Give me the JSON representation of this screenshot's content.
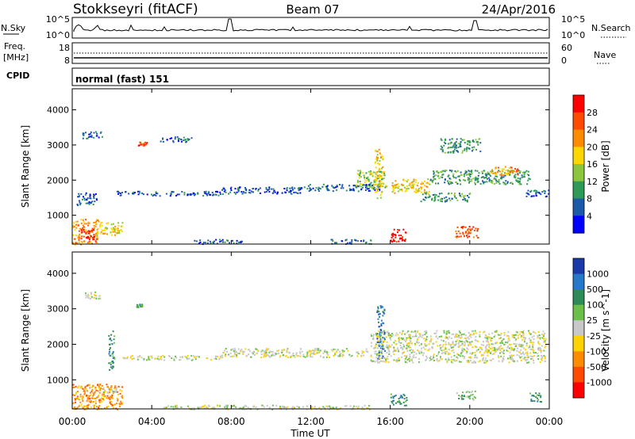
{
  "header": {
    "station": "Stokkseyri (fitACF)",
    "beam": "Beam 07",
    "date": "24/Apr/2016"
  },
  "noise_panel": {
    "left_label": "N.Sky",
    "right_label": "N.Search",
    "left_ticks": [
      "10^5",
      "10^0"
    ],
    "right_ticks": [
      "10^5",
      "10^0"
    ]
  },
  "freq_panel": {
    "left_label": "Freq.",
    "left_unit": "[MHz]",
    "left_ticks": [
      "18",
      "8"
    ],
    "right_label": "Nave",
    "right_ticks": [
      "60",
      "0"
    ]
  },
  "cpid_panel": {
    "label": "CPID",
    "mode": "normal (fast) 151"
  },
  "chart_data": [
    {
      "type": "heatmap",
      "name": "power",
      "ylabel": "Slant Range [km]",
      "yticks": [
        1000,
        2000,
        3000,
        4000
      ],
      "ylim": [
        180,
        4600
      ],
      "xticks": [
        "00:00",
        "04:00",
        "08:00",
        "12:00",
        "16:00",
        "20:00",
        "00:00"
      ],
      "xlim_hours": [
        0,
        24
      ],
      "colorbar_label": "Power [dB]",
      "colorbar_ticks": [
        "28",
        "24",
        "20",
        "16",
        "12",
        "8",
        "4"
      ],
      "colorbar_colors": [
        "#ff0000",
        "#ff4a00",
        "#ff8c00",
        "#ffd700",
        "#8cc63f",
        "#2e9a55",
        "#1b5aa8",
        "#0000ff"
      ],
      "regions": [
        {
          "t0": 0.0,
          "t1": 1.3,
          "r0": 180,
          "r1": 900,
          "level": 5
        },
        {
          "t0": 0.4,
          "t1": 1.1,
          "r0": 320,
          "r1": 620,
          "level": 7
        },
        {
          "t0": 1.2,
          "t1": 2.5,
          "r0": 450,
          "r1": 820,
          "level": 4
        },
        {
          "t0": 0.2,
          "t1": 1.2,
          "r0": 1300,
          "r1": 1650,
          "level": 1
        },
        {
          "t0": 0.5,
          "t1": 1.5,
          "r0": 3200,
          "r1": 3400,
          "level": 1
        },
        {
          "t0": 2.2,
          "t1": 7.5,
          "r0": 1570,
          "r1": 1700,
          "level": 1
        },
        {
          "t0": 3.3,
          "t1": 3.8,
          "r0": 3000,
          "r1": 3100,
          "level": 6
        },
        {
          "t0": 4.3,
          "t1": 6.0,
          "r0": 3100,
          "r1": 3250,
          "level": 1
        },
        {
          "t0": 7.5,
          "t1": 11.5,
          "r0": 1620,
          "r1": 1820,
          "level": 1
        },
        {
          "t0": 11.5,
          "t1": 15.5,
          "r0": 1700,
          "r1": 1900,
          "level": 1
        },
        {
          "t0": 14.2,
          "t1": 15.8,
          "r0": 1800,
          "r1": 2300,
          "level": 3
        },
        {
          "t0": 15.2,
          "t1": 15.6,
          "r0": 1500,
          "r1": 2900,
          "level": 4
        },
        {
          "t0": 16.0,
          "t1": 18.0,
          "r0": 1650,
          "r1": 2050,
          "level": 4
        },
        {
          "t0": 17.5,
          "t1": 20.0,
          "r0": 1400,
          "r1": 1650,
          "level": 2
        },
        {
          "t0": 18.0,
          "t1": 23.0,
          "r0": 1900,
          "r1": 2300,
          "level": 2
        },
        {
          "t0": 21.0,
          "t1": 22.5,
          "r0": 2150,
          "r1": 2400,
          "level": 5
        },
        {
          "t0": 22.8,
          "t1": 24.0,
          "r0": 1550,
          "r1": 1750,
          "level": 1
        },
        {
          "t0": 18.5,
          "t1": 20.5,
          "r0": 2800,
          "r1": 3200,
          "level": 2
        },
        {
          "t0": 16.0,
          "t1": 16.8,
          "r0": 250,
          "r1": 620,
          "level": 7
        },
        {
          "t0": 19.2,
          "t1": 20.4,
          "r0": 380,
          "r1": 700,
          "level": 6
        },
        {
          "t0": 6.0,
          "t1": 8.5,
          "r0": 200,
          "r1": 330,
          "level": 1
        },
        {
          "t0": 13.0,
          "t1": 15.0,
          "r0": 200,
          "r1": 330,
          "level": 1
        }
      ]
    },
    {
      "type": "heatmap",
      "name": "velocity",
      "ylabel": "Slant Range [km]",
      "yticks": [
        1000,
        2000,
        3000,
        4000
      ],
      "ylim": [
        180,
        4600
      ],
      "xticks": [
        "00:00",
        "04:00",
        "08:00",
        "12:00",
        "16:00",
        "20:00",
        "00:00"
      ],
      "xlim_hours": [
        0,
        24
      ],
      "xlabel": "Time UT",
      "colorbar_label": "Velocity [m s^-1]",
      "colorbar_ticks": [
        "1000",
        "500",
        "100",
        "25",
        "-25",
        "-100",
        "-500",
        "-1000"
      ],
      "colorbar_colors": [
        "#1a3aa8",
        "#2878c8",
        "#2e8b57",
        "#6cc04a",
        "#c8c8c8",
        "#ffd200",
        "#ff8c00",
        "#ff4a00",
        "#ff0000"
      ],
      "regions": [
        {
          "t0": 0.0,
          "t1": 2.5,
          "r0": 180,
          "r1": 900,
          "level": 2
        },
        {
          "t0": 1.5,
          "t1": 2.2,
          "r0": 650,
          "r1": 820,
          "level": 4
        },
        {
          "t0": 0.5,
          "t1": 1.5,
          "r0": 3300,
          "r1": 3500,
          "level": 4
        },
        {
          "t0": 2.5,
          "t1": 7.5,
          "r0": 1570,
          "r1": 1700,
          "level": 4
        },
        {
          "t0": 3.2,
          "t1": 3.5,
          "r0": 3050,
          "r1": 3150,
          "level": 6
        },
        {
          "t0": 1.8,
          "t1": 2.1,
          "r0": 1300,
          "r1": 2400,
          "level": 6
        },
        {
          "t0": 7.5,
          "t1": 15.0,
          "r0": 1650,
          "r1": 1900,
          "level": 4
        },
        {
          "t0": 15.3,
          "t1": 15.7,
          "r0": 1600,
          "r1": 3100,
          "level": 7
        },
        {
          "t0": 15.0,
          "t1": 23.8,
          "r0": 1500,
          "r1": 2400,
          "level": 4
        },
        {
          "t0": 16.0,
          "t1": 16.8,
          "r0": 280,
          "r1": 620,
          "level": 6
        },
        {
          "t0": 19.3,
          "t1": 20.3,
          "r0": 450,
          "r1": 700,
          "level": 5
        },
        {
          "t0": 23.0,
          "t1": 23.6,
          "r0": 400,
          "r1": 650,
          "level": 6
        },
        {
          "t0": 4.5,
          "t1": 15.0,
          "r0": 180,
          "r1": 300,
          "level": 4
        }
      ]
    }
  ]
}
